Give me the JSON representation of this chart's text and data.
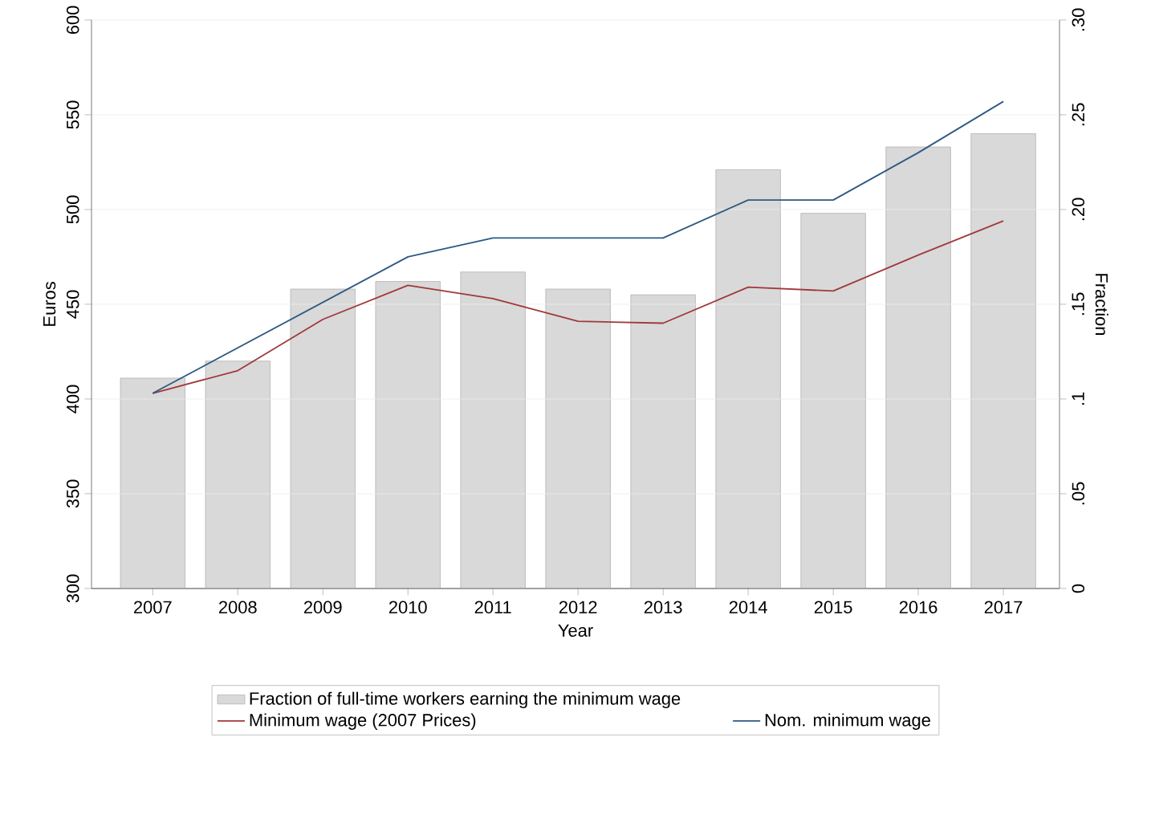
{
  "chart_data": {
    "type": "bar",
    "xlabel": "Year",
    "ylabel": "Euros",
    "y2label": "Fraction",
    "categories": [
      "2007",
      "2008",
      "2009",
      "2010",
      "2011",
      "2012",
      "2013",
      "2014",
      "2015",
      "2016",
      "2017"
    ],
    "series": [
      {
        "name": "Fraction of full-time workers earning the minimum wage",
        "axis": "y2",
        "color": "#d9d9d9",
        "values": [
          0.111,
          0.12,
          0.158,
          0.162,
          0.167,
          0.158,
          0.155,
          0.221,
          0.198,
          0.233,
          0.24
        ]
      },
      {
        "name": "Minimum wage (2007 Prices)",
        "type": "line",
        "color": "#a0393c",
        "values": [
          403,
          415,
          442,
          460,
          453,
          441,
          440,
          459,
          457,
          476,
          494
        ]
      },
      {
        "name": "Nom. minimum wage",
        "type": "line",
        "color": "#2c5a83",
        "values": [
          403,
          427,
          451,
          475,
          485,
          485,
          485,
          505,
          505,
          530,
          557
        ]
      }
    ],
    "ylim": [
      300,
      600
    ],
    "yticks": [
      300,
      350,
      400,
      450,
      500,
      550,
      600
    ],
    "y2lim": [
      0,
      0.3
    ],
    "y2ticks": [
      {
        "value": 0,
        "label": "0"
      },
      {
        "value": 0.05,
        "label": ".05"
      },
      {
        "value": 0.1,
        "label": ".1"
      },
      {
        "value": 0.15,
        "label": ".15"
      },
      {
        "value": 0.2,
        "label": ".20"
      },
      {
        "value": 0.25,
        "label": ".25"
      },
      {
        "value": 0.3,
        "label": ".30"
      }
    ],
    "grid": "y",
    "legend": "bottom",
    "marker": "none",
    "line_style": "solid"
  }
}
